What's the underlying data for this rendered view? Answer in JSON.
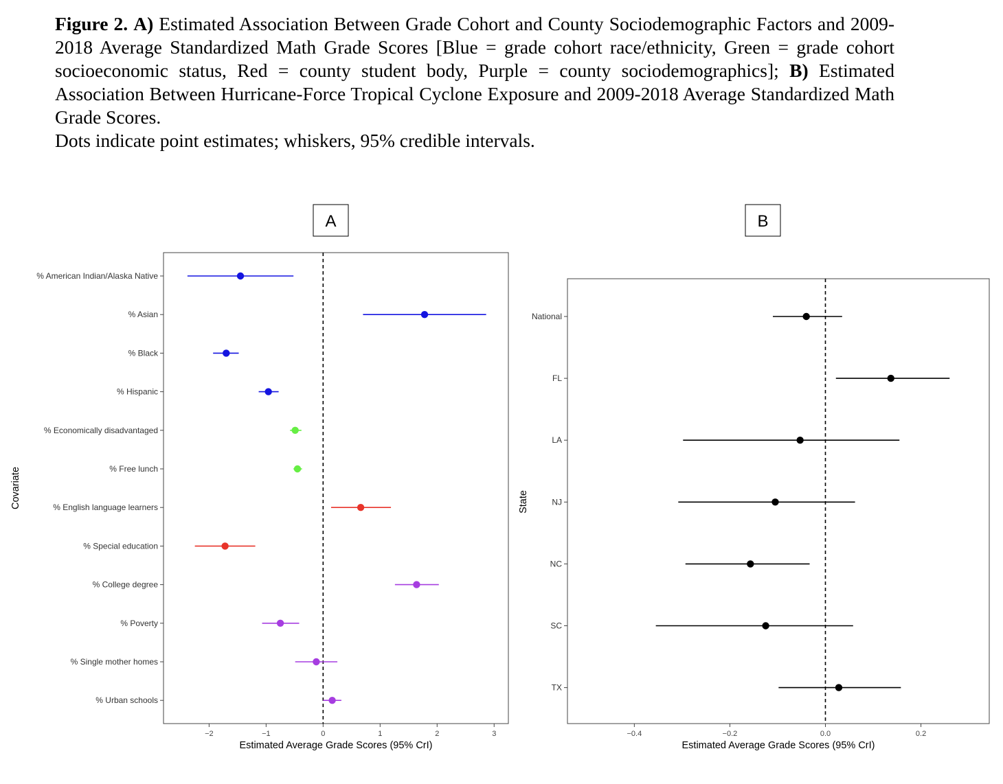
{
  "caption": {
    "fig_label": "Figure 2.",
    "part_a_label": "A)",
    "part_a_text": "Estimated Association Between Grade Cohort and County Sociodemographic Factors and 2009-2018 Average Standardized Math Grade Scores [Blue = grade cohort race/ethnicity, Green = grade cohort socioeconomic status, Red = county student body, Purple = county sociodemographics];",
    "part_b_label": "B)",
    "part_b_text": "Estimated Association Between Hurricane-Force Tropical Cyclone Exposure and 2009-2018 Average Standardized Math Grade Scores.",
    "note": "Dots indicate point estimates; whiskers, 95% credible intervals."
  },
  "chart_data": [
    {
      "type": "scatter",
      "panel_label": "A",
      "xlabel": "Estimated Average Grade Scores (95% CrI)",
      "ylabel": "Covariate",
      "xlim": [
        -2.8,
        3.25
      ],
      "xticks": [
        -2,
        -1,
        0,
        1,
        2,
        3
      ],
      "reference_line": 0,
      "grid": false,
      "colors": {
        "race_ethnicity": "#0000ff",
        "ses": "#66ff33",
        "student_body": "#ee2222",
        "sociodemographics": "#a033ee"
      },
      "points": [
        {
          "label": "% American Indian/Alaska Native",
          "estimate": -1.45,
          "lower": -2.38,
          "upper": -0.52,
          "group": "race_ethnicity",
          "color": "#1414e0"
        },
        {
          "label": "% Asian",
          "estimate": 1.78,
          "lower": 0.7,
          "upper": 2.86,
          "group": "race_ethnicity",
          "color": "#1414e0"
        },
        {
          "label": "% Black",
          "estimate": -1.7,
          "lower": -1.93,
          "upper": -1.48,
          "group": "race_ethnicity",
          "color": "#1414e0"
        },
        {
          "label": "% Hispanic",
          "estimate": -0.96,
          "lower": -1.13,
          "upper": -0.78,
          "group": "race_ethnicity",
          "color": "#1414e0"
        },
        {
          "label": "% Economically disadvantaged",
          "estimate": -0.49,
          "lower": -0.58,
          "upper": -0.38,
          "group": "ses",
          "color": "#66ee44"
        },
        {
          "label": "% Free lunch",
          "estimate": -0.45,
          "lower": -0.52,
          "upper": -0.37,
          "group": "ses",
          "color": "#66ee44"
        },
        {
          "label": "% English language learners",
          "estimate": 0.66,
          "lower": 0.14,
          "upper": 1.19,
          "group": "student_body",
          "color": "#e8342a"
        },
        {
          "label": "% Special education",
          "estimate": -1.72,
          "lower": -2.25,
          "upper": -1.19,
          "group": "student_body",
          "color": "#e8342a"
        },
        {
          "label": "% College degree",
          "estimate": 1.64,
          "lower": 1.26,
          "upper": 2.03,
          "group": "sociodemographics",
          "color": "#a63de0"
        },
        {
          "label": "% Poverty",
          "estimate": -0.75,
          "lower": -1.07,
          "upper": -0.42,
          "group": "sociodemographics",
          "color": "#a63de0"
        },
        {
          "label": "% Single mother homes",
          "estimate": -0.12,
          "lower": -0.49,
          "upper": 0.25,
          "group": "sociodemographics",
          "color": "#a63de0"
        },
        {
          "label": "% Urban schools",
          "estimate": 0.16,
          "lower": 0.0,
          "upper": 0.32,
          "group": "sociodemographics",
          "color": "#a63de0"
        }
      ]
    },
    {
      "type": "scatter",
      "panel_label": "B",
      "xlabel": "Estimated Average Grade Scores (95% CrI)",
      "ylabel": "State",
      "xlim": [
        -0.54,
        0.343
      ],
      "xticks": [
        -0.4,
        -0.2,
        0.0,
        0.2
      ],
      "xtick_labels": [
        "−0.4",
        "−0.2",
        "0.0",
        "0.2"
      ],
      "reference_line": 0,
      "grid": false,
      "points": [
        {
          "label": "National",
          "estimate": -0.04,
          "lower": -0.11,
          "upper": 0.035,
          "color": "#000000"
        },
        {
          "label": "FL",
          "estimate": 0.137,
          "lower": 0.022,
          "upper": 0.26,
          "color": "#000000"
        },
        {
          "label": "LA",
          "estimate": -0.053,
          "lower": -0.298,
          "upper": 0.155,
          "color": "#000000"
        },
        {
          "label": "NJ",
          "estimate": -0.105,
          "lower": -0.308,
          "upper": 0.062,
          "color": "#000000"
        },
        {
          "label": "NC",
          "estimate": -0.157,
          "lower": -0.293,
          "upper": -0.033,
          "color": "#000000"
        },
        {
          "label": "SC",
          "estimate": -0.125,
          "lower": -0.355,
          "upper": 0.058,
          "color": "#000000"
        },
        {
          "label": "TX",
          "estimate": 0.028,
          "lower": -0.098,
          "upper": 0.158,
          "color": "#000000"
        }
      ]
    }
  ]
}
